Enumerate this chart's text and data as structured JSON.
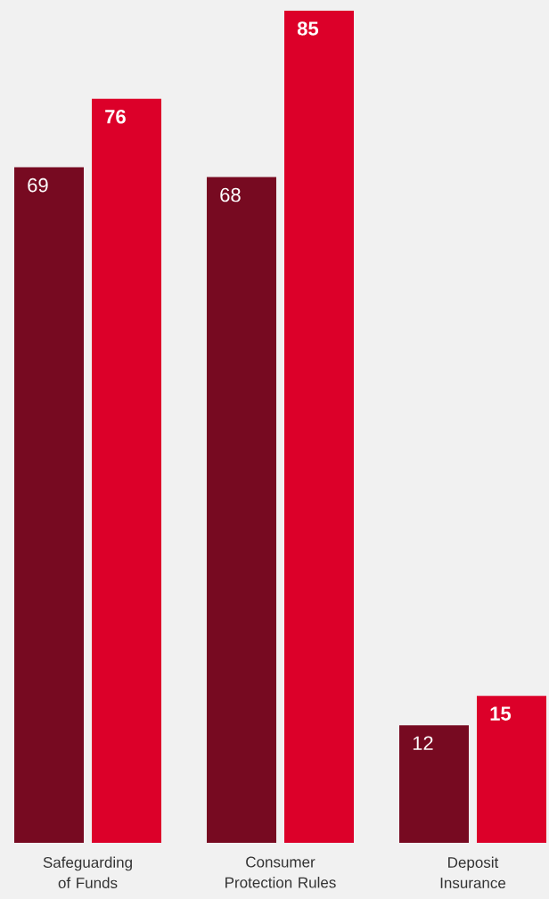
{
  "chart_data": {
    "type": "bar",
    "categories": [
      "Safeguarding of Funds",
      "Consumer Protection Rules",
      "Deposit Insurance"
    ],
    "series": [
      {
        "color": "#770a21",
        "values": [
          69,
          68,
          12
        ]
      },
      {
        "color": "#dc0029",
        "values": [
          76,
          85,
          15
        ]
      }
    ],
    "data_labels": true
  }
}
